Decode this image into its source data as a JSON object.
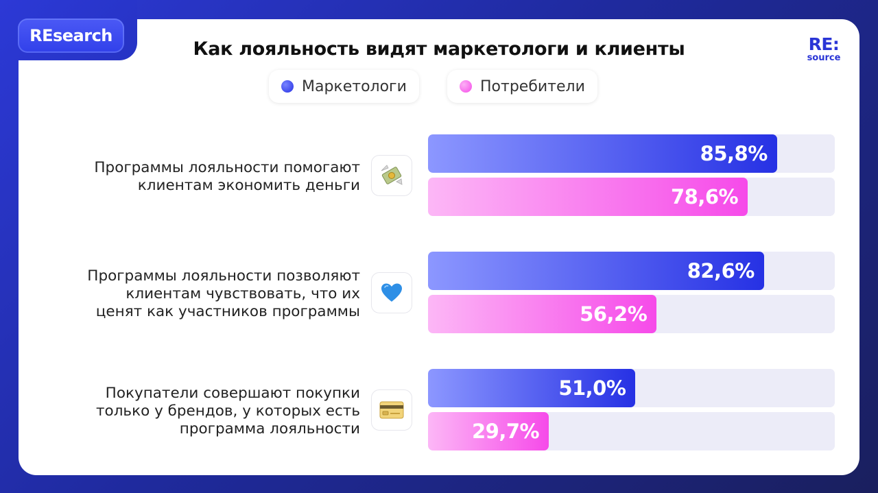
{
  "badge": "REsearch",
  "title": "Как лояльность видят маркетологи и клиенты",
  "logo": {
    "line1": "RE:",
    "line2": "source"
  },
  "colors": {
    "marketers": "#2631e4",
    "consumers": "#f64ae9",
    "accent": "#2a35d6"
  },
  "chart_data": {
    "type": "bar",
    "orientation": "horizontal",
    "title": "Как лояльность видят маркетологи и клиенты",
    "legend_position": "top",
    "xlim": [
      0,
      100
    ],
    "categories": [
      "Программы лояльности помогают клиентам экономить деньги",
      "Программы лояльности позволяют клиентам чувствовать, что их ценят как участников программы",
      "Покупатели совершают покупки только у брендов, у которых есть программа лояльности"
    ],
    "category_lines": [
      [
        "Программы лояльности помогают",
        "клиентам экономить деньги"
      ],
      [
        "Программы лояльности позволяют",
        "клиентам чувствовать, что их",
        "ценят как участников программы"
      ],
      [
        "Покупатели совершают покупки",
        "только у брендов, у которых есть",
        "программа лояльности"
      ]
    ],
    "category_icons": [
      "money-with-wings-icon",
      "blue-heart-icon",
      "credit-card-icon"
    ],
    "series": [
      {
        "name": "Маркетологи",
        "values": [
          85.8,
          82.6,
          51.0
        ],
        "labels": [
          "85,8%",
          "82,6%",
          "51,0%"
        ]
      },
      {
        "name": "Потребители",
        "values": [
          78.6,
          56.2,
          29.7
        ],
        "labels": [
          "78,6%",
          "56,2%",
          "29,7%"
        ]
      }
    ]
  }
}
